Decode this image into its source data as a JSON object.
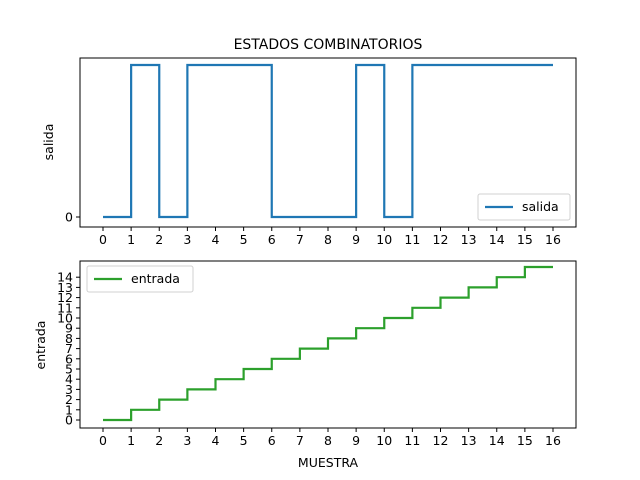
{
  "chart_data": [
    {
      "type": "line",
      "drawstyle": "steps-post",
      "title": "ESTADOS COMBINATORIOS",
      "xlabel": "",
      "ylabel": "salida",
      "x": [
        0,
        1,
        2,
        3,
        4,
        5,
        6,
        7,
        8,
        9,
        10,
        11,
        12,
        13,
        14,
        15,
        16
      ],
      "xticks": [
        "0",
        "1",
        "2",
        "3",
        "4",
        "5",
        "6",
        "7",
        "8",
        "9",
        "10",
        "11",
        "12",
        "13",
        "14",
        "15",
        "16"
      ],
      "yticks": [
        "0"
      ],
      "ylim": [
        0,
        1
      ],
      "legend_position": "lower-right",
      "series": [
        {
          "name": "salida",
          "color": "#1f77b4",
          "values": [
            0,
            1,
            0,
            1,
            1,
            1,
            0,
            0,
            0,
            1,
            0,
            1,
            1,
            1,
            1,
            1,
            1
          ]
        }
      ]
    },
    {
      "type": "line",
      "drawstyle": "steps-post",
      "title": "",
      "xlabel": "MUESTRA",
      "ylabel": "entrada",
      "x": [
        0,
        1,
        2,
        3,
        4,
        5,
        6,
        7,
        8,
        9,
        10,
        11,
        12,
        13,
        14,
        15,
        16
      ],
      "xticks": [
        "0",
        "1",
        "2",
        "3",
        "4",
        "5",
        "6",
        "7",
        "8",
        "9",
        "10",
        "11",
        "12",
        "13",
        "14",
        "15",
        "16"
      ],
      "yticks": [
        "0",
        "1",
        "2",
        "3",
        "4",
        "5",
        "6",
        "7",
        "8",
        "9",
        "10",
        "11",
        "12",
        "13",
        "14"
      ],
      "ylim": [
        0,
        15
      ],
      "legend_position": "upper-left",
      "series": [
        {
          "name": "entrada",
          "color": "#2ca02c",
          "values": [
            0,
            1,
            2,
            3,
            4,
            5,
            6,
            7,
            8,
            9,
            10,
            11,
            12,
            13,
            14,
            15,
            15
          ]
        }
      ]
    }
  ]
}
